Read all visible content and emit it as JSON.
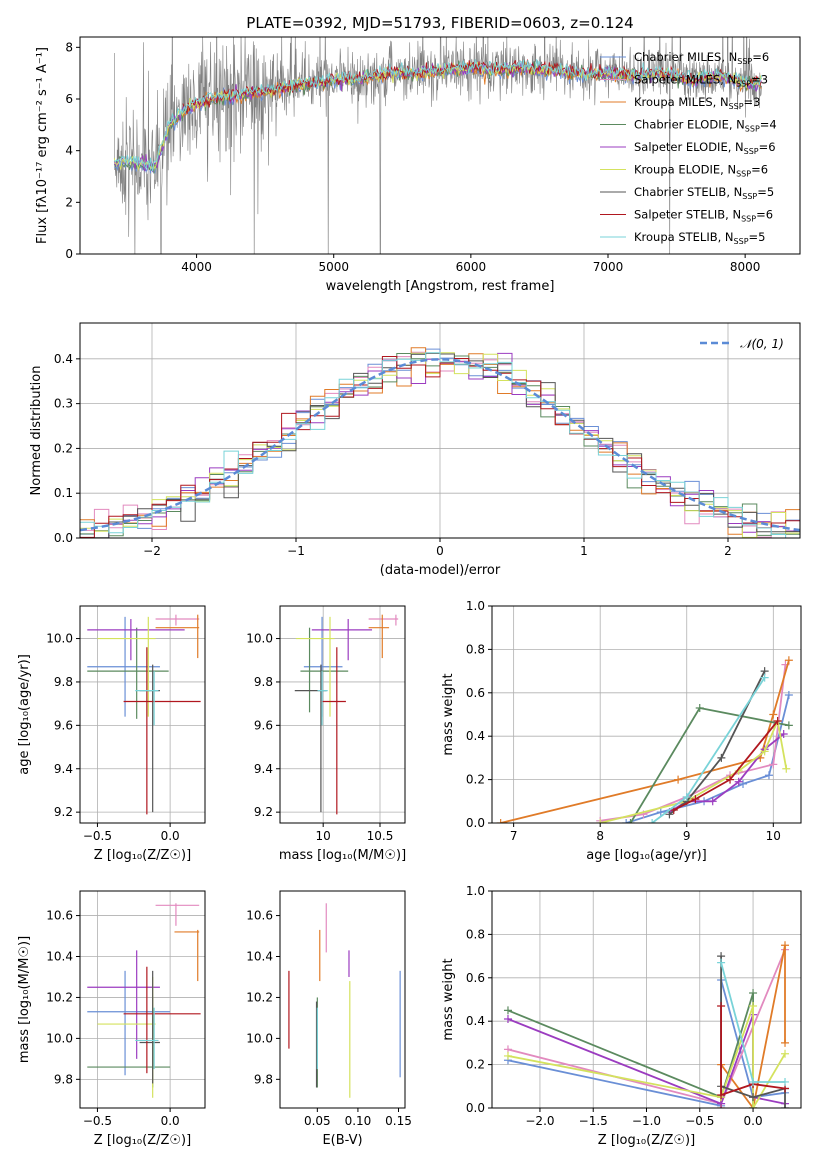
{
  "figure": {
    "title": "PLATE=0392, MJD=51793, FIBERID=0603, z=0.124",
    "colors": [
      "#6a8fd6",
      "#e28abf",
      "#e07b28",
      "#5b8a5f",
      "#9b3cc0",
      "#d4e25e",
      "#555555",
      "#b0171f",
      "#79d3d8"
    ]
  },
  "chart_data": [
    {
      "id": "spectrum",
      "type": "line",
      "xlabel": "wavelength [Angstrom, rest frame]",
      "ylabel": "Flux [fλ10⁻¹⁷ erg cm⁻² s⁻¹ A⁻¹]",
      "xlim": [
        3150,
        8400
      ],
      "ylim": [
        0,
        8.4
      ],
      "xticks": [
        4000,
        5000,
        6000,
        7000,
        8000
      ],
      "yticks": [
        0,
        2,
        4,
        6,
        8
      ],
      "continuum": {
        "x": [
          3400,
          3500,
          3600,
          3700,
          3800,
          3900,
          4000,
          4200,
          4400,
          4600,
          4800,
          5000,
          5200,
          5400,
          5600,
          5800,
          6000,
          6200,
          6400,
          6600,
          6800,
          7000,
          7200,
          7400,
          7600,
          7800,
          8000,
          8100
        ],
        "y": [
          3.5,
          3.6,
          3.5,
          3.4,
          5.0,
          5.5,
          5.8,
          6.1,
          6.2,
          6.4,
          6.6,
          6.7,
          6.8,
          7.0,
          7.0,
          7.1,
          7.2,
          7.1,
          7.2,
          7.1,
          7.0,
          7.0,
          6.9,
          7.0,
          6.7,
          6.9,
          6.6,
          6.6
        ]
      },
      "legend_position": "upper-right",
      "legend": [
        {
          "label": "Chabrier MILES, N",
          "sub": "SSP",
          "suffix": "=6"
        },
        {
          "label": "Salpeter MILES, N",
          "sub": "SSP",
          "suffix": "=3"
        },
        {
          "label": "Kroupa MILES, N",
          "sub": "SSP",
          "suffix": "=3"
        },
        {
          "label": "Chabrier ELODIE, N",
          "sub": "SSP",
          "suffix": "=4"
        },
        {
          "label": "Salpeter ELODIE, N",
          "sub": "SSP",
          "suffix": "=6"
        },
        {
          "label": "Kroupa ELODIE, N",
          "sub": "SSP",
          "suffix": "=6"
        },
        {
          "label": "Chabrier STELIB, N",
          "sub": "SSP",
          "suffix": "=5"
        },
        {
          "label": "Salpeter STELIB, N",
          "sub": "SSP",
          "suffix": "=6"
        },
        {
          "label": "Kroupa STELIB, N",
          "sub": "SSP",
          "suffix": "=5"
        }
      ]
    },
    {
      "id": "residuals",
      "type": "histogram",
      "xlabel": "(data-model)/error",
      "ylabel": "Normed distribution",
      "xlim": [
        -2.5,
        2.5
      ],
      "ylim": [
        0,
        0.48
      ],
      "xticks": [
        -2,
        -1,
        0,
        1,
        2
      ],
      "yticks": [
        0.0,
        0.1,
        0.2,
        0.3,
        0.4
      ],
      "bin_width": 0.1,
      "grid": true,
      "legend_position": "upper-right",
      "legend": "𝒩(0, 1)"
    },
    {
      "id": "age-vs-z",
      "type": "scatter",
      "xlabel": "Z [log₁₀(Z/Z☉)]",
      "ylabel": "age  [log₁₀(age/yr)]",
      "xlim": [
        -0.62,
        0.24
      ],
      "ylim": [
        9.15,
        10.15
      ],
      "xticks": [
        -0.5,
        0.0
      ],
      "xticklabels": [
        "−0.5",
        "0.0"
      ],
      "yticks": [
        9.2,
        9.4,
        9.6,
        9.8,
        10.0
      ],
      "grid": true,
      "points": [
        {
          "x": -0.31,
          "y": 9.87,
          "xlo": -0.57,
          "xhi": -0.07,
          "ylo": 9.64,
          "yhi": 10.1
        },
        {
          "x": 0.04,
          "y": 10.09,
          "xlo": -0.1,
          "xhi": 0.2,
          "ylo": 10.06,
          "yhi": 10.11
        },
        {
          "x": 0.19,
          "y": 10.05,
          "xlo": -0.1,
          "xhi": 0.2,
          "ylo": 9.91,
          "yhi": 10.11
        },
        {
          "x": -0.23,
          "y": 9.85,
          "xlo": -0.57,
          "xhi": -0.01,
          "ylo": 9.63,
          "yhi": 10.05
        },
        {
          "x": -0.27,
          "y": 10.04,
          "xlo": -0.57,
          "xhi": 0.1,
          "ylo": 9.9,
          "yhi": 10.09
        },
        {
          "x": -0.15,
          "y": 10.0,
          "xlo": -0.5,
          "xhi": -0.1,
          "ylo": 9.64,
          "yhi": 10.1
        },
        {
          "x": -0.12,
          "y": 9.76,
          "xlo": -0.21,
          "xhi": -0.07,
          "ylo": 9.2,
          "yhi": 9.88
        },
        {
          "x": -0.16,
          "y": 9.71,
          "xlo": -0.32,
          "xhi": 0.21,
          "ylo": 9.19,
          "yhi": 9.96
        },
        {
          "x": -0.11,
          "y": 9.76,
          "xlo": -0.24,
          "xhi": -0.08,
          "ylo": 9.6,
          "yhi": 9.85
        }
      ]
    },
    {
      "id": "age-vs-mass",
      "type": "scatter",
      "xlabel": "mass [log₁₀(M/M☉)]",
      "ylabel": "",
      "xlim": [
        9.62,
        10.72
      ],
      "ylim": [
        9.15,
        10.15
      ],
      "xticks": [
        10.0,
        10.5
      ],
      "yticks": [
        9.2,
        9.4,
        9.6,
        9.8,
        10.0
      ],
      "grid": true,
      "points": [
        {
          "x": 9.99,
          "y": 9.87,
          "xlo": 9.83,
          "xhi": 10.17,
          "ylo": 9.64,
          "yhi": 10.1
        },
        {
          "x": 10.64,
          "y": 10.09,
          "xlo": 10.4,
          "xhi": 10.66,
          "ylo": 10.06,
          "yhi": 10.11
        },
        {
          "x": 10.52,
          "y": 10.05,
          "xlo": 10.4,
          "xhi": 10.58,
          "ylo": 9.91,
          "yhi": 10.11
        },
        {
          "x": 9.88,
          "y": 9.85,
          "xlo": 9.8,
          "xhi": 10.22,
          "ylo": 9.66,
          "yhi": 10.05
        },
        {
          "x": 10.22,
          "y": 10.04,
          "xlo": 9.9,
          "xhi": 10.43,
          "ylo": 9.9,
          "yhi": 10.09
        },
        {
          "x": 10.06,
          "y": 10.0,
          "xlo": 9.76,
          "xhi": 10.1,
          "ylo": 9.64,
          "yhi": 10.1
        },
        {
          "x": 9.98,
          "y": 9.76,
          "xlo": 9.75,
          "xhi": 10.03,
          "ylo": 9.2,
          "yhi": 9.88
        },
        {
          "x": 10.12,
          "y": 9.71,
          "xlo": 9.98,
          "xhi": 10.2,
          "ylo": 9.19,
          "yhi": 9.96
        },
        {
          "x": 9.99,
          "y": 9.76,
          "xlo": 9.95,
          "xhi": 10.04,
          "ylo": 9.6,
          "yhi": 9.85
        }
      ]
    },
    {
      "id": "weight-vs-age",
      "type": "line",
      "xlabel": "age  [log₁₀(age/yr)]",
      "ylabel": "mass weight",
      "xlim": [
        6.75,
        10.32
      ],
      "ylim": [
        0,
        1.0
      ],
      "xticks": [
        7,
        8,
        9,
        10
      ],
      "yticks": [
        0.0,
        0.2,
        0.4,
        0.6,
        0.8,
        1.0
      ],
      "grid": true,
      "series": [
        {
          "x": [
            8.3,
            8.7,
            9.2,
            9.65,
            9.95,
            10.18
          ],
          "y": [
            0.0,
            0.05,
            0.1,
            0.18,
            0.22,
            0.59
          ]
        },
        {
          "x": [
            8.0,
            8.5,
            9.0,
            9.5,
            10.0,
            10.14
          ],
          "y": [
            0.01,
            0.04,
            0.12,
            0.22,
            0.27,
            0.73
          ]
        },
        {
          "x": [
            6.85,
            8.9,
            9.85,
            10.0,
            10.18
          ],
          "y": [
            0.0,
            0.2,
            0.3,
            0.5,
            0.75
          ]
        },
        {
          "x": [
            8.35,
            9.15,
            10.18
          ],
          "y": [
            0.0,
            0.53,
            0.45
          ]
        },
        {
          "x": [
            8.8,
            9.0,
            9.3,
            9.6,
            9.9,
            10.12
          ],
          "y": [
            0.05,
            0.1,
            0.1,
            0.19,
            0.34,
            0.41
          ]
        },
        {
          "x": [
            8.0,
            9.0,
            9.6,
            9.9,
            10.05,
            10.15
          ],
          "y": [
            0.0,
            0.1,
            0.24,
            0.33,
            0.47,
            0.25
          ]
        },
        {
          "x": [
            8.8,
            9.0,
            9.4,
            9.9
          ],
          "y": [
            0.04,
            0.1,
            0.3,
            0.7
          ]
        },
        {
          "x": [
            8.85,
            9.1,
            9.5,
            10.05
          ],
          "y": [
            0.06,
            0.11,
            0.2,
            0.47
          ]
        },
        {
          "x": [
            8.6,
            9.0,
            9.9
          ],
          "y": [
            0.0,
            0.12,
            0.67
          ]
        }
      ]
    },
    {
      "id": "mass-vs-z",
      "type": "scatter",
      "xlabel": "Z [log₁₀(Z/Z☉)]",
      "ylabel": "mass [log₁₀(M/M☉)]",
      "xlim": [
        -0.62,
        0.24
      ],
      "ylim": [
        9.66,
        10.72
      ],
      "xticks": [
        -0.5,
        0.0
      ],
      "xticklabels": [
        "−0.5",
        "0.0"
      ],
      "yticks": [
        9.8,
        10.0,
        10.2,
        10.4,
        10.6
      ],
      "grid": true,
      "points": [
        {
          "x": -0.31,
          "y": 10.13,
          "xlo": -0.57,
          "xhi": 0.0,
          "ylo": 9.82,
          "yhi": 10.33
        },
        {
          "x": 0.04,
          "y": 10.65,
          "xlo": -0.1,
          "xhi": 0.2,
          "ylo": 10.55,
          "yhi": 10.66
        },
        {
          "x": 0.19,
          "y": 10.52,
          "xlo": 0.03,
          "xhi": 0.2,
          "ylo": 10.28,
          "yhi": 10.53
        },
        {
          "x": -0.12,
          "y": 9.86,
          "xlo": -0.57,
          "xhi": 0.0,
          "ylo": 9.76,
          "yhi": 10.2
        },
        {
          "x": -0.23,
          "y": 10.25,
          "xlo": -0.57,
          "xhi": -0.07,
          "ylo": 9.9,
          "yhi": 10.43
        },
        {
          "x": -0.12,
          "y": 10.07,
          "xlo": -0.5,
          "xhi": -0.1,
          "ylo": 9.71,
          "yhi": 10.3
        },
        {
          "x": -0.12,
          "y": 9.98,
          "xlo": -0.21,
          "xhi": -0.07,
          "ylo": 9.78,
          "yhi": 10.33
        },
        {
          "x": -0.16,
          "y": 10.12,
          "xlo": -0.32,
          "xhi": 0.21,
          "ylo": 9.83,
          "yhi": 10.35
        },
        {
          "x": -0.11,
          "y": 9.99,
          "xlo": -0.24,
          "xhi": -0.08,
          "ylo": 9.85,
          "yhi": 10.15
        }
      ]
    },
    {
      "id": "mass-vs-ebv",
      "type": "scatter",
      "xlabel": "E(B-V)",
      "ylabel": "",
      "xlim": [
        0.004,
        0.158
      ],
      "ylim": [
        9.66,
        10.72
      ],
      "xticks": [
        0.05,
        0.1,
        0.15
      ],
      "xticklabels": [
        "0.05",
        "0.10",
        "0.15"
      ],
      "yticks": [
        9.8,
        10.0,
        10.2,
        10.4,
        10.6
      ],
      "grid": false,
      "points": [
        {
          "x": 0.152,
          "y": 10.13,
          "ylo": 9.81,
          "yhi": 10.33
        },
        {
          "x": 0.061,
          "y": 10.55,
          "ylo": 10.42,
          "yhi": 10.66
        },
        {
          "x": 0.053,
          "y": 10.4,
          "ylo": 10.28,
          "yhi": 10.53
        },
        {
          "x": 0.05,
          "y": 9.9,
          "ylo": 9.76,
          "yhi": 10.2
        },
        {
          "x": 0.089,
          "y": 10.4,
          "ylo": 10.3,
          "yhi": 10.43
        },
        {
          "x": 0.09,
          "y": 10.0,
          "ylo": 9.71,
          "yhi": 10.28
        },
        {
          "x": 0.049,
          "y": 9.98,
          "ylo": 9.76,
          "yhi": 10.18
        },
        {
          "x": 0.015,
          "y": 10.15,
          "ylo": 9.95,
          "yhi": 10.33
        },
        {
          "x": 0.05,
          "y": 10.0,
          "ylo": 9.85,
          "yhi": 10.15
        }
      ]
    },
    {
      "id": "weight-vs-z",
      "type": "line",
      "xlabel": "Z [log₁₀(Z/Z☉)]",
      "ylabel": "mass weight",
      "xlim": [
        -2.45,
        0.45
      ],
      "ylim": [
        0,
        1.0
      ],
      "xticks": [
        -2.0,
        -1.5,
        -1.0,
        -0.5,
        0.0
      ],
      "xticklabels": [
        "−2.0",
        "−1.5",
        "−1.0",
        "−0.5",
        "0.0"
      ],
      "yticks": [
        0.0,
        0.2,
        0.4,
        0.6,
        0.8,
        1.0
      ],
      "grid": true,
      "series": [
        {
          "x": [
            -2.3,
            -0.3,
            -0.3,
            0.0,
            0.3
          ],
          "y": [
            0.22,
            0.01,
            0.59,
            0.05,
            0.07
          ]
        },
        {
          "x": [
            -2.3,
            -0.3,
            0.3
          ],
          "y": [
            0.27,
            0.02,
            0.73
          ]
        },
        {
          "x": [
            -0.3,
            -0.3,
            0.0,
            0.3,
            0.3
          ],
          "y": [
            0.0,
            0.2,
            0.0,
            0.75,
            0.3
          ]
        },
        {
          "x": [
            -2.3,
            -0.3,
            0.0,
            0.0
          ],
          "y": [
            0.45,
            0.05,
            0.53,
            0.0
          ]
        },
        {
          "x": [
            -2.3,
            -0.3,
            0.0,
            0.0,
            0.3
          ],
          "y": [
            0.41,
            0.02,
            0.43,
            0.05,
            0.02
          ]
        },
        {
          "x": [
            -2.3,
            -0.3,
            0.0,
            0.0,
            0.3
          ],
          "y": [
            0.24,
            0.05,
            0.47,
            0.0,
            0.25
          ]
        },
        {
          "x": [
            -0.3,
            -0.3,
            0.0,
            0.3,
            0.3
          ],
          "y": [
            0.7,
            0.1,
            0.05,
            0.09,
            0.0
          ]
        },
        {
          "x": [
            -0.3,
            -0.3,
            0.0,
            0.3
          ],
          "y": [
            0.47,
            0.06,
            0.11,
            0.09
          ]
        },
        {
          "x": [
            -0.3,
            0.0,
            0.3
          ],
          "y": [
            0.67,
            0.12,
            0.12
          ]
        }
      ]
    }
  ]
}
